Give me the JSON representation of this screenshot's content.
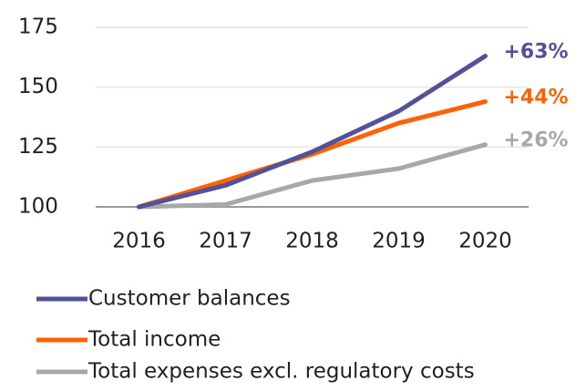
{
  "chart_data": {
    "type": "line",
    "categories": [
      "2016",
      "2017",
      "2018",
      "2019",
      "2020"
    ],
    "series": [
      {
        "name": "Customer balances",
        "color": "#525199",
        "values": [
          100,
          109,
          123,
          140,
          163
        ],
        "label": "+63%"
      },
      {
        "name": "Total income",
        "color": "#ff6200",
        "values": [
          100,
          111,
          122,
          135,
          144
        ],
        "label": "+44%"
      },
      {
        "name": "Total expenses excl. regulatory costs",
        "color": "#a8a8a8",
        "values": [
          100,
          101,
          111,
          116,
          126
        ],
        "label": "+26%"
      }
    ],
    "ylim": [
      100,
      175
    ],
    "yticks": [
      100,
      125,
      150,
      175
    ],
    "grid": true,
    "legend": "bottom"
  }
}
